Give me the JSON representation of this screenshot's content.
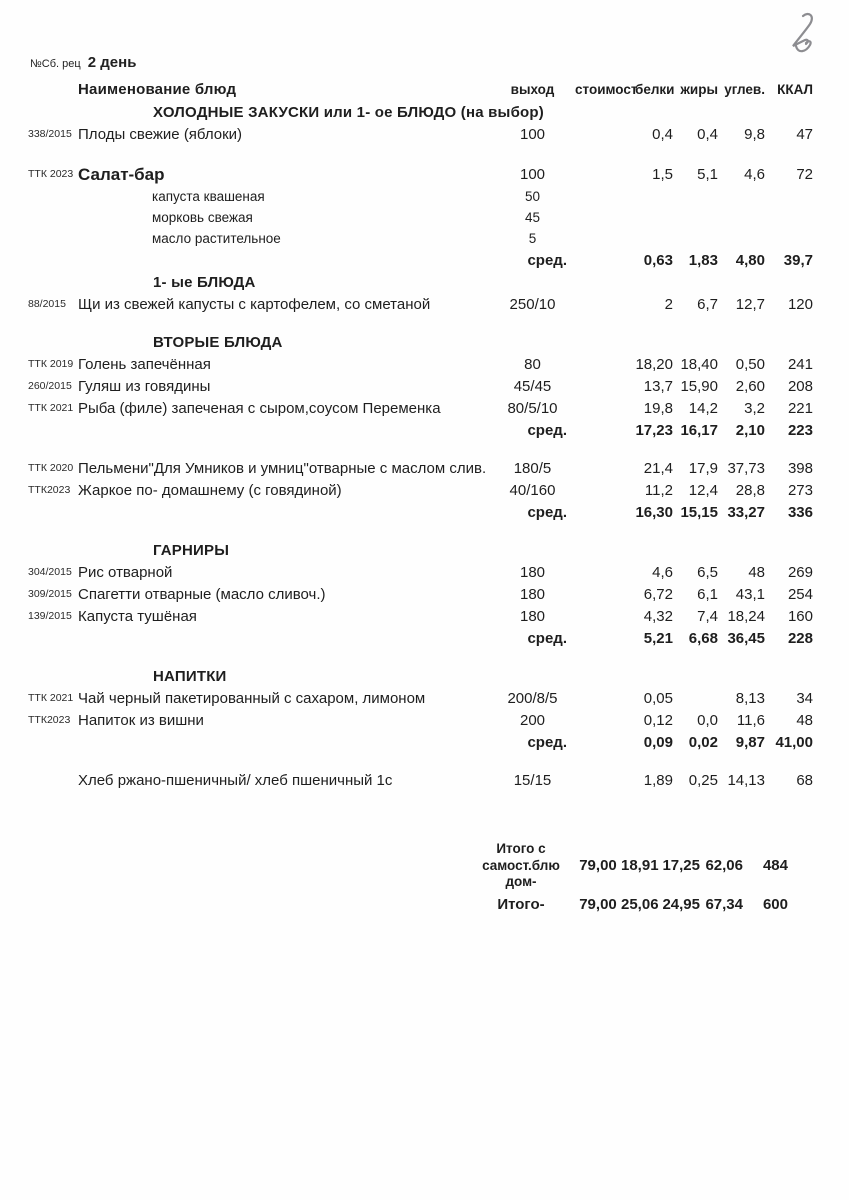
{
  "meta": {
    "collection_label": "№Сб. рец",
    "day": "2 день",
    "handwritten_mark": "2"
  },
  "table": {
    "name_header": "Наименование  блюд",
    "columns": [
      "выход",
      "стоимост",
      "белки",
      "жиры",
      "углев.",
      "ККАЛ"
    ],
    "rows": [
      {
        "type": "section",
        "label": "ХОЛОДНЫЕ  ЗАКУСКИ  или 1- ое БЛЮДО (на выбор)"
      },
      {
        "type": "dish",
        "code": "338/2015",
        "name": "Плоды свежие (яблоки)",
        "out": "100",
        "cost": "",
        "protein": "0,4",
        "fat": "0,4",
        "carb": "9,8",
        "kcal": "47"
      },
      {
        "type": "blank"
      },
      {
        "type": "dish",
        "style": "lg",
        "code": "ТТК 2023",
        "name": "Салат-бар",
        "out": "100",
        "cost": "",
        "protein": "1,5",
        "fat": "5,1",
        "carb": "4,6",
        "kcal": "72"
      },
      {
        "type": "ingredient",
        "name": "капуста квашеная",
        "out": "50"
      },
      {
        "type": "ingredient",
        "name": "морковь свежая",
        "out": "45"
      },
      {
        "type": "ingredient",
        "name": "масло растительное",
        "out": "5"
      },
      {
        "type": "avg",
        "label": "сред.",
        "protein": "0,63",
        "fat": "1,83",
        "carb": "4,80",
        "kcal": "39,7"
      },
      {
        "type": "section",
        "label": "1- ые БЛЮДА"
      },
      {
        "type": "dish",
        "code": "88/2015",
        "name": "Щи из свежей капусты с картофелем, со сметаной",
        "out": "250/10",
        "cost": "",
        "protein": "2",
        "fat": "6,7",
        "carb": "12,7",
        "kcal": "120"
      },
      {
        "type": "blank"
      },
      {
        "type": "section",
        "label": "ВТОРЫЕ  БЛЮДА"
      },
      {
        "type": "dish",
        "code": "ТТК 2019",
        "name": "Голень запечённая",
        "out": "80",
        "cost": "",
        "protein": "18,20",
        "fat": "18,40",
        "carb": "0,50",
        "kcal": "241"
      },
      {
        "type": "dish",
        "code": "260/2015",
        "name": "Гуляш из говядины",
        "out": "45/45",
        "cost": "",
        "protein": "13,7",
        "fat": "15,90",
        "carb": "2,60",
        "kcal": "208"
      },
      {
        "type": "dish",
        "code": "ТТК 2021",
        "name": "Рыба (филе) запеченая с сыром,соусом Переменка",
        "out": "80/5/10",
        "cost": "",
        "protein": "19,8",
        "fat": "14,2",
        "carb": "3,2",
        "kcal": "221"
      },
      {
        "type": "avg",
        "label": "сред.",
        "protein": "17,23",
        "fat": "16,17",
        "carb": "2,10",
        "kcal": "223"
      },
      {
        "type": "blank"
      },
      {
        "type": "dish",
        "code": "ТТК 2020",
        "name": "Пельмени\"Для Умников и умниц\"отварные с маслом слив.",
        "out": "180/5",
        "cost": "",
        "protein": "21,4",
        "fat": "17,9",
        "carb": "37,73",
        "kcal": "398"
      },
      {
        "type": "dish",
        "code": "ТТК2023",
        "name": "Жаркое по- домашнему (с говядиной)",
        "out": "40/160",
        "cost": "",
        "protein": "11,2",
        "fat": "12,4",
        "carb": "28,8",
        "kcal": "273"
      },
      {
        "type": "avg",
        "label": "сред.",
        "protein": "16,30",
        "fat": "15,15",
        "carb": "33,27",
        "kcal": "336"
      },
      {
        "type": "blank"
      },
      {
        "type": "section",
        "label": "ГАРНИРЫ"
      },
      {
        "type": "dish",
        "code": "304/2015",
        "name": "Рис отварной",
        "out": "180",
        "cost": "",
        "protein": "4,6",
        "fat": "6,5",
        "carb": "48",
        "kcal": "269"
      },
      {
        "type": "dish",
        "code": "309/2015",
        "name": "Спагетти отварные (масло сливоч.)",
        "out": "180",
        "cost": "",
        "protein": "6,72",
        "fat": "6,1",
        "carb": "43,1",
        "kcal": "254"
      },
      {
        "type": "dish",
        "code": "139/2015",
        "name": "Капуста тушёная",
        "out": "180",
        "cost": "",
        "protein": "4,32",
        "fat": "7,4",
        "carb": "18,24",
        "kcal": "160"
      },
      {
        "type": "avg",
        "label": "сред.",
        "protein": "5,21",
        "fat": "6,68",
        "carb": "36,45",
        "kcal": "228"
      },
      {
        "type": "blank"
      },
      {
        "type": "section",
        "label": "НАПИТКИ"
      },
      {
        "type": "dish",
        "code": "ТТК 2021",
        "name": "Чай черный пакетированный с сахаром, лимоном",
        "out": "200/8/5",
        "cost": "",
        "protein": "0,05",
        "fat": "",
        "carb": "8,13",
        "kcal": "34"
      },
      {
        "type": "dish",
        "code": "ТТК2023",
        "name": "Напиток из вишни",
        "out": "200",
        "cost": "",
        "protein": "0,12",
        "fat": "0,0",
        "carb": "11,6",
        "kcal": "48"
      },
      {
        "type": "avg",
        "label": "сред.",
        "protein": "0,09",
        "fat": "0,02",
        "carb": "9,87",
        "kcal": "41,00"
      },
      {
        "type": "blank"
      },
      {
        "type": "dish",
        "code": "",
        "name": "Хлеб ржано-пшеничный/ хлеб пшеничный 1с",
        "out": "15/15",
        "cost": "",
        "protein": "1,89",
        "fat": "0,25",
        "carb": "14,13",
        "kcal": "68"
      }
    ],
    "totals": [
      {
        "label_lines": [
          "Итого с",
          "самост.блю",
          "дом-"
        ],
        "cost": "79,00",
        "protein": "18,91",
        "fat": "17,25",
        "carb": "62,06",
        "kcal": "484"
      },
      {
        "label_lines": [
          "Итого-"
        ],
        "cost": "79,00",
        "protein": "25,06",
        "fat": "24,95",
        "carb": "67,34",
        "kcal": "600"
      }
    ]
  }
}
